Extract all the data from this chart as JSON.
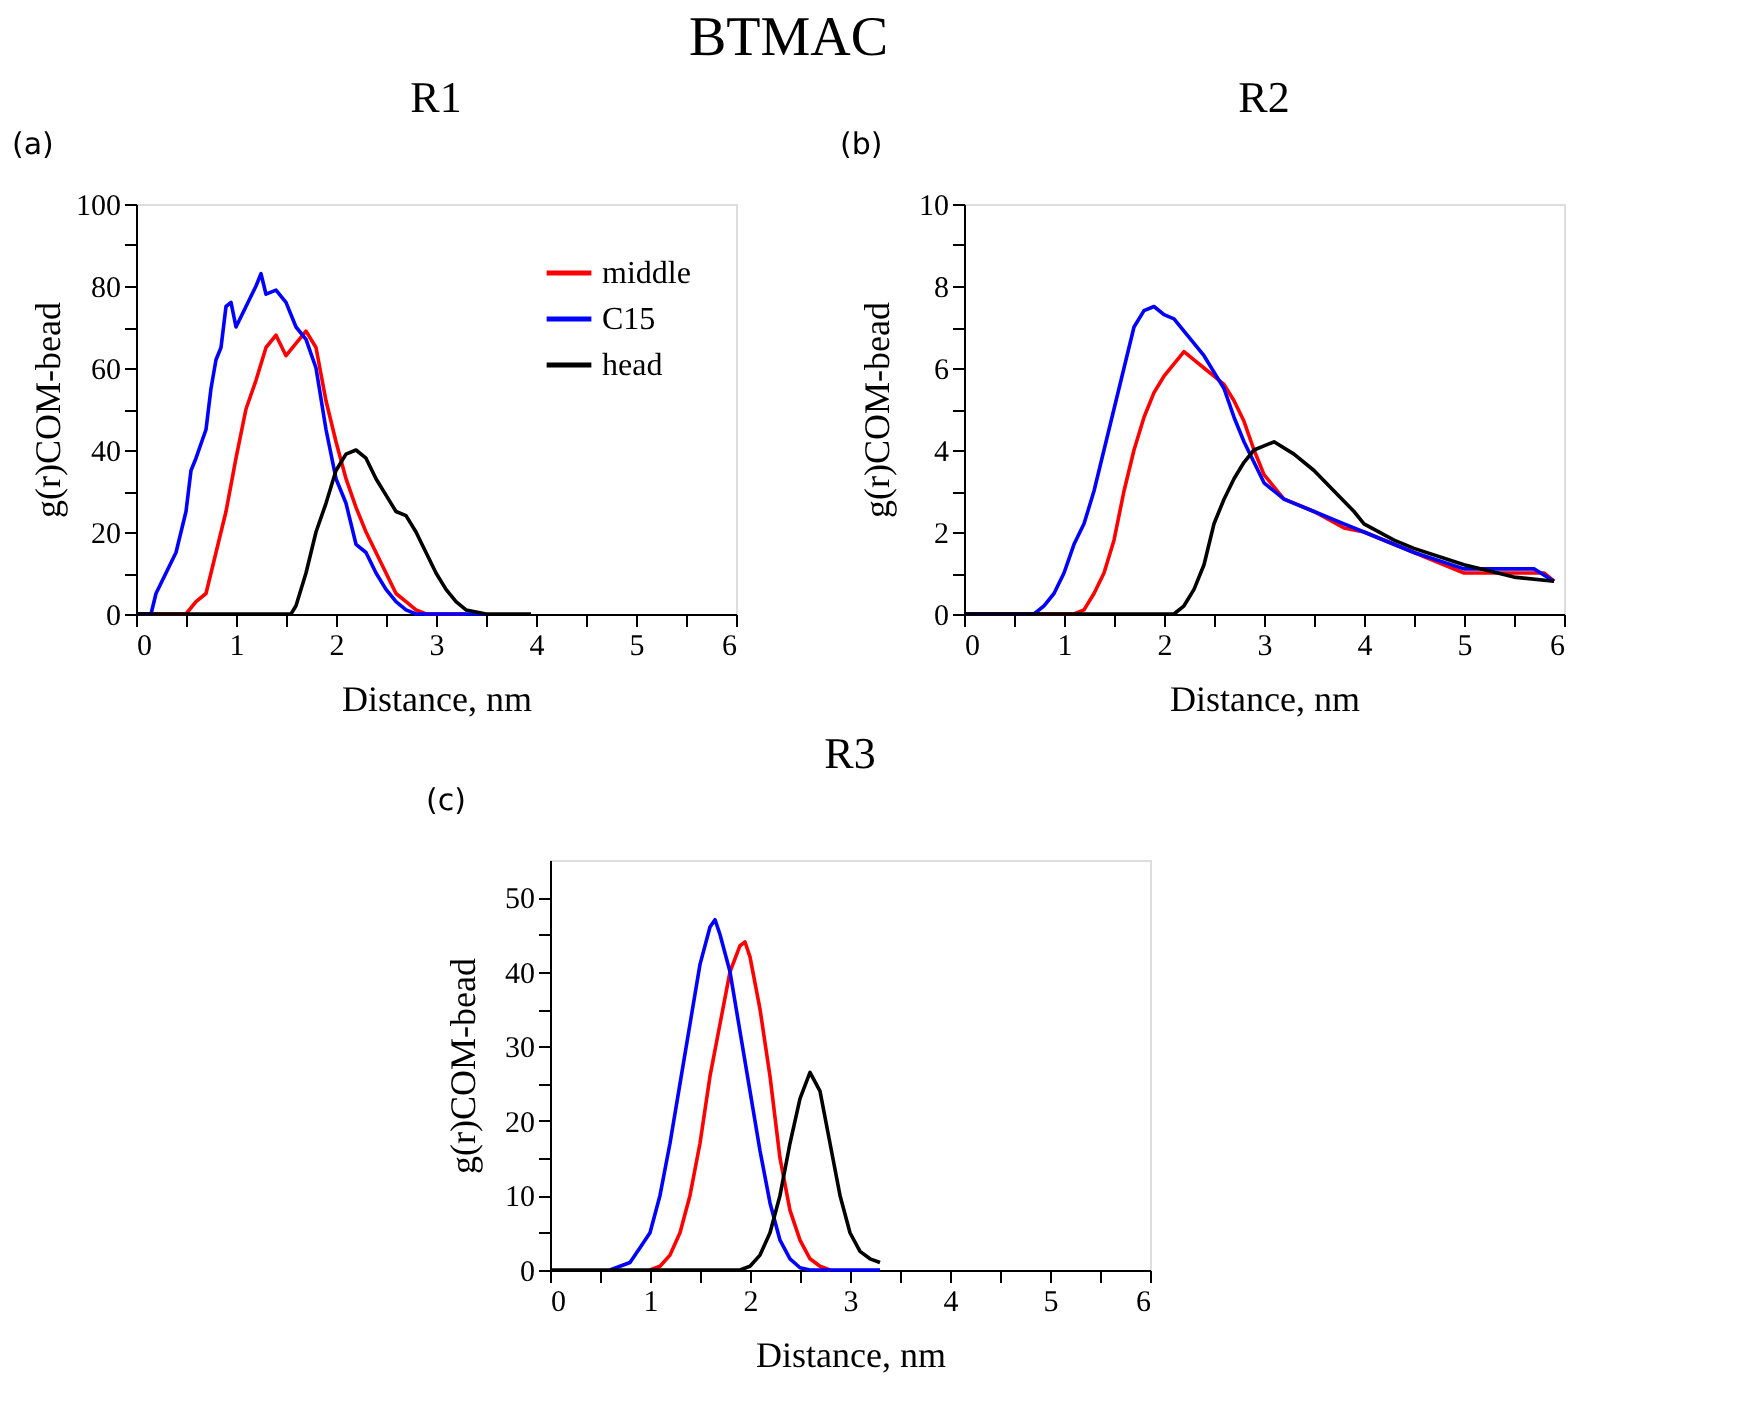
{
  "chart_data": [
    {
      "type": "line",
      "title": "R1",
      "xlabel": "Distance, nm",
      "ylabel": "g(r)COM-bead",
      "annotations": [
        "BTMAC",
        "(a)"
      ],
      "xlim": [
        0,
        6
      ],
      "ylim": [
        0,
        100
      ],
      "xticks": [
        0,
        {
          "value": 0.5,
          "label": null
        },
        1,
        {
          "value": 1.5,
          "label": null
        },
        2,
        {
          "value": 2.5,
          "label": null
        },
        3,
        {
          "value": 3.5,
          "label": null
        },
        4,
        {
          "value": 4.5,
          "label": null
        },
        5,
        {
          "value": 5.5,
          "label": null
        },
        6
      ],
      "yticks": [
        0,
        {
          "value": 10,
          "label": null
        },
        20,
        {
          "value": 30,
          "label": null
        },
        40,
        {
          "value": 50,
          "label": null
        },
        60,
        {
          "value": 70,
          "label": null
        },
        80,
        {
          "value": 90,
          "label": null
        },
        100
      ],
      "grid": false,
      "legend": "top right",
      "marker": "none",
      "line_style": "solid",
      "series": [
        {
          "name": "middle",
          "color": "#ff0000",
          "x": [
            0,
            0.5,
            0.6,
            0.7,
            0.8,
            0.9,
            1.0,
            1.1,
            1.2,
            1.3,
            1.4,
            1.5,
            1.6,
            1.7,
            1.8,
            1.9,
            2.0,
            2.1,
            2.2,
            2.3,
            2.4,
            2.5,
            2.6,
            2.7,
            2.8,
            2.9,
            3.3
          ],
          "values": [
            0,
            0,
            3,
            5,
            15,
            25,
            38,
            50,
            57,
            65,
            68,
            63,
            66,
            69,
            65,
            52,
            42,
            33,
            26,
            20,
            15,
            10,
            5,
            3,
            1,
            0,
            0
          ]
        },
        {
          "name": "C15",
          "color": "#0000ff",
          "x": [
            0,
            0.15,
            0.2,
            0.3,
            0.4,
            0.5,
            0.55,
            0.6,
            0.7,
            0.75,
            0.8,
            0.85,
            0.9,
            0.95,
            1.0,
            1.1,
            1.2,
            1.25,
            1.3,
            1.4,
            1.5,
            1.6,
            1.7,
            1.8,
            1.9,
            2.0,
            2.1,
            2.2,
            2.3,
            2.4,
            2.5,
            2.6,
            2.7,
            2.8,
            3.5
          ],
          "values": [
            0,
            0,
            5,
            10,
            15,
            25,
            35,
            38,
            45,
            55,
            62,
            65,
            75,
            76,
            70,
            75,
            80,
            83,
            78,
            79,
            76,
            70,
            67,
            60,
            45,
            33,
            27,
            17,
            15,
            10,
            6,
            3,
            1,
            0,
            0
          ]
        },
        {
          "name": "head",
          "color": "#000000",
          "x": [
            0,
            1.55,
            1.6,
            1.7,
            1.8,
            1.9,
            2.0,
            2.1,
            2.2,
            2.3,
            2.4,
            2.5,
            2.6,
            2.7,
            2.8,
            2.9,
            3.0,
            3.1,
            3.2,
            3.3,
            3.4,
            3.5,
            3.95
          ],
          "values": [
            0,
            0,
            2,
            10,
            20,
            27,
            35,
            39,
            40,
            38,
            33,
            29,
            25,
            24,
            20,
            15,
            10,
            6,
            3,
            1,
            0.5,
            0,
            0
          ]
        }
      ]
    },
    {
      "type": "line",
      "title": "R2",
      "xlabel": "Distance, nm",
      "ylabel": "g(r)COM-bead",
      "annotations": [
        "(b)"
      ],
      "xlim": [
        0,
        6
      ],
      "ylim": [
        0,
        10
      ],
      "xticks": [
        0,
        {
          "value": 0.5,
          "label": null
        },
        1,
        {
          "value": 1.5,
          "label": null
        },
        2,
        {
          "value": 2.5,
          "label": null
        },
        3,
        {
          "value": 3.5,
          "label": null
        },
        4,
        {
          "value": 4.5,
          "label": null
        },
        5,
        {
          "value": 5.5,
          "label": null
        },
        6
      ],
      "yticks": [
        0,
        {
          "value": 1,
          "label": null
        },
        2,
        {
          "value": 3,
          "label": null
        },
        4,
        {
          "value": 5,
          "label": null
        },
        6,
        {
          "value": 7,
          "label": null
        },
        8,
        {
          "value": 9,
          "label": null
        },
        10
      ],
      "grid": false,
      "marker": "none",
      "line_style": "solid",
      "series": [
        {
          "color": "#ff0000",
          "x": [
            0,
            1.1,
            1.2,
            1.3,
            1.4,
            1.5,
            1.6,
            1.7,
            1.8,
            1.9,
            2.0,
            2.1,
            2.2,
            2.3,
            2.4,
            2.5,
            2.6,
            2.7,
            2.8,
            2.9,
            3.0,
            3.2,
            3.5,
            3.8,
            4.0,
            4.5,
            5.0,
            5.5,
            5.8,
            5.9
          ],
          "values": [
            0,
            0,
            0.1,
            0.5,
            1.0,
            1.8,
            3.0,
            4.0,
            4.8,
            5.4,
            5.8,
            6.1,
            6.4,
            6.2,
            6.0,
            5.8,
            5.6,
            5.2,
            4.7,
            4.0,
            3.4,
            2.8,
            2.5,
            2.1,
            2.0,
            1.5,
            1.0,
            1.0,
            1.0,
            0.8
          ]
        },
        {
          "color": "#0000ff",
          "x": [
            0,
            0.7,
            0.8,
            0.9,
            1.0,
            1.1,
            1.2,
            1.3,
            1.4,
            1.5,
            1.6,
            1.7,
            1.8,
            1.9,
            2.0,
            2.1,
            2.2,
            2.3,
            2.4,
            2.5,
            2.6,
            2.7,
            2.8,
            2.9,
            3.0,
            3.2,
            3.5,
            3.8,
            4.0,
            4.5,
            5.0,
            5.5,
            5.7,
            5.9
          ],
          "values": [
            0,
            0,
            0.2,
            0.5,
            1.0,
            1.7,
            2.2,
            3.0,
            4.0,
            5.0,
            6.0,
            7.0,
            7.4,
            7.5,
            7.3,
            7.2,
            6.9,
            6.6,
            6.3,
            5.9,
            5.5,
            4.8,
            4.2,
            3.7,
            3.2,
            2.8,
            2.5,
            2.2,
            2.0,
            1.5,
            1.1,
            1.1,
            1.1,
            0.8
          ]
        },
        {
          "color": "#000000",
          "x": [
            0,
            2.1,
            2.2,
            2.3,
            2.4,
            2.5,
            2.6,
            2.7,
            2.8,
            2.9,
            3.0,
            3.1,
            3.3,
            3.5,
            3.7,
            3.9,
            4.0,
            4.3,
            4.5,
            5.0,
            5.5,
            5.9
          ],
          "values": [
            0,
            0,
            0.2,
            0.6,
            1.2,
            2.2,
            2.8,
            3.3,
            3.7,
            4.0,
            4.1,
            4.2,
            3.9,
            3.5,
            3.0,
            2.5,
            2.2,
            1.8,
            1.6,
            1.2,
            0.9,
            0.8
          ]
        }
      ]
    },
    {
      "type": "line",
      "title": "R3",
      "xlabel": "Distance, nm",
      "ylabel": "g(r)COM-bead",
      "annotations": [
        "(c)"
      ],
      "xlim": [
        0,
        6
      ],
      "ylim": [
        0,
        55
      ],
      "xticks": [
        0,
        {
          "value": 0.5,
          "label": null
        },
        1,
        {
          "value": 1.5,
          "label": null
        },
        2,
        {
          "value": 2.5,
          "label": null
        },
        3,
        {
          "value": 3.5,
          "label": null
        },
        4,
        {
          "value": 4.5,
          "label": null
        },
        5,
        {
          "value": 5.5,
          "label": null
        },
        6
      ],
      "yticks": [
        0,
        {
          "value": 5,
          "label": null
        },
        10,
        {
          "value": 15,
          "label": null
        },
        20,
        {
          "value": 25,
          "label": null
        },
        30,
        {
          "value": 35,
          "label": null
        },
        40,
        {
          "value": 45,
          "label": null
        },
        50
      ],
      "grid": false,
      "marker": "none",
      "line_style": "solid",
      "series": [
        {
          "color": "#ff0000",
          "x": [
            1.0,
            1.1,
            1.2,
            1.3,
            1.4,
            1.5,
            1.6,
            1.7,
            1.8,
            1.9,
            1.95,
            2.0,
            2.1,
            2.2,
            2.3,
            2.4,
            2.5,
            2.6,
            2.7,
            2.8
          ],
          "values": [
            0,
            0.5,
            2,
            5,
            10,
            17,
            26,
            33,
            40,
            43.5,
            44,
            42,
            35,
            26,
            15,
            8,
            4,
            1.5,
            0.5,
            0
          ]
        },
        {
          "color": "#0000ff",
          "x": [
            0.6,
            0.8,
            0.9,
            1.0,
            1.1,
            1.2,
            1.3,
            1.4,
            1.5,
            1.6,
            1.65,
            1.7,
            1.8,
            1.9,
            2.0,
            2.1,
            2.2,
            2.3,
            2.4,
            2.5,
            2.6,
            3.3
          ],
          "values": [
            0,
            1,
            3,
            5,
            10,
            17,
            25,
            33,
            41,
            46,
            47,
            45,
            40,
            32,
            24,
            16,
            9,
            4,
            1.5,
            0.3,
            0,
            0
          ]
        },
        {
          "color": "#000000",
          "x": [
            0,
            1.9,
            2.0,
            2.1,
            2.2,
            2.3,
            2.4,
            2.5,
            2.6,
            2.7,
            2.8,
            2.9,
            3.0,
            3.1,
            3.2,
            3.3
          ],
          "values": [
            0,
            0,
            0.5,
            2,
            5,
            10,
            17,
            23,
            26.5,
            24,
            17,
            10,
            5,
            2.5,
            1.5,
            1
          ]
        }
      ]
    }
  ]
}
